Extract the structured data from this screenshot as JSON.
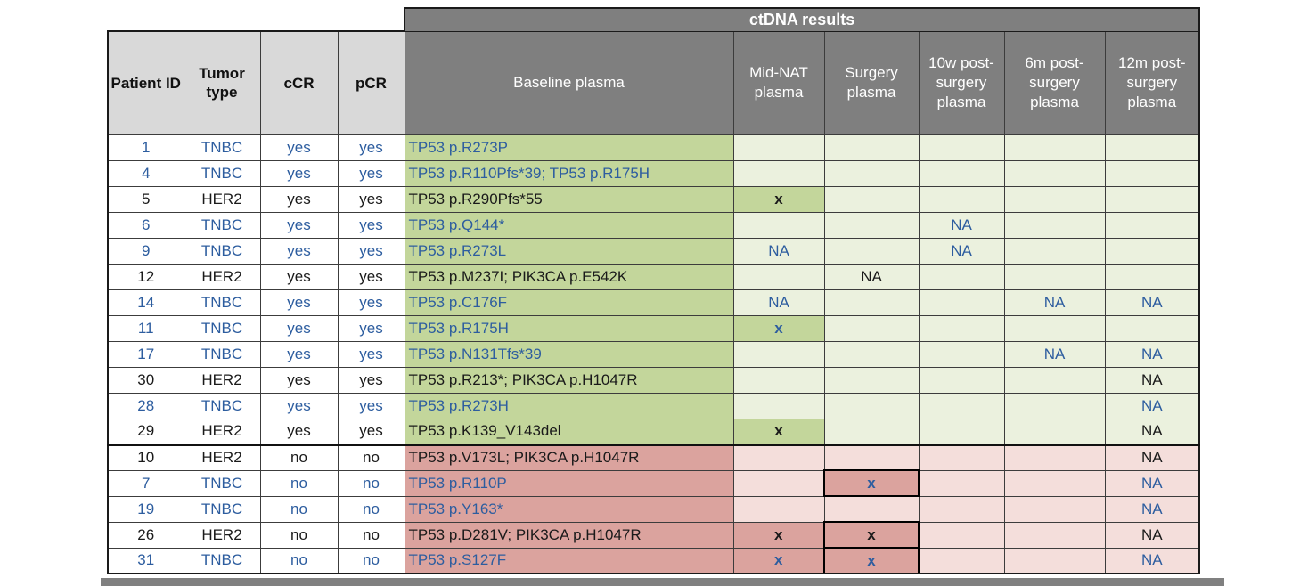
{
  "chart_data": {
    "type": "table",
    "title": "ctDNA results",
    "group_header": {
      "label": "ctDNA results",
      "span_columns": 6
    },
    "columns": [
      "Patient ID",
      "Tumor type",
      "cCR",
      "pCR",
      "Baseline plasma",
      "Mid-NAT plasma",
      "Surgery plasma",
      "10w post-surgery plasma",
      "6m post-surgery plasma",
      "12m post-surgery plasma"
    ],
    "rows": [
      {
        "id": "1",
        "tumor": "TNBC",
        "ccr": "yes",
        "pcr": "yes",
        "baseline": "TP53 p.R273P",
        "mid": "",
        "surg": "",
        "w10": "",
        "m6": "",
        "m12": "",
        "highlight": [],
        "boxed": []
      },
      {
        "id": "4",
        "tumor": "TNBC",
        "ccr": "yes",
        "pcr": "yes",
        "baseline": "TP53 p.R110Pfs*39; TP53 p.R175H",
        "mid": "",
        "surg": "",
        "w10": "",
        "m6": "",
        "m12": "",
        "highlight": [],
        "boxed": []
      },
      {
        "id": "5",
        "tumor": "HER2",
        "ccr": "yes",
        "pcr": "yes",
        "baseline": "TP53 p.R290Pfs*55",
        "mid": "x",
        "surg": "",
        "w10": "",
        "m6": "",
        "m12": "",
        "highlight": [
          "mid"
        ],
        "boxed": []
      },
      {
        "id": "6",
        "tumor": "TNBC",
        "ccr": "yes",
        "pcr": "yes",
        "baseline": "TP53 p.Q144*",
        "mid": "",
        "surg": "",
        "w10": "NA",
        "m6": "",
        "m12": "",
        "highlight": [],
        "boxed": []
      },
      {
        "id": "9",
        "tumor": "TNBC",
        "ccr": "yes",
        "pcr": "yes",
        "baseline": "TP53 p.R273L",
        "mid": "NA",
        "surg": "",
        "w10": "NA",
        "m6": "",
        "m12": "",
        "highlight": [],
        "boxed": []
      },
      {
        "id": "12",
        "tumor": "HER2",
        "ccr": "yes",
        "pcr": "yes",
        "baseline": "TP53 p.M237I; PIK3CA p.E542K",
        "mid": "",
        "surg": "NA",
        "w10": "",
        "m6": "",
        "m12": "",
        "highlight": [],
        "boxed": []
      },
      {
        "id": "14",
        "tumor": "TNBC",
        "ccr": "yes",
        "pcr": "yes",
        "baseline": "TP53 p.C176F",
        "mid": "NA",
        "surg": "",
        "w10": "",
        "m6": "NA",
        "m12": "NA",
        "highlight": [],
        "boxed": []
      },
      {
        "id": "11",
        "tumor": "TNBC",
        "ccr": "yes",
        "pcr": "yes",
        "baseline": "TP53 p.R175H",
        "mid": "x",
        "surg": "",
        "w10": "",
        "m6": "",
        "m12": "",
        "highlight": [
          "mid"
        ],
        "boxed": []
      },
      {
        "id": "17",
        "tumor": "TNBC",
        "ccr": "yes",
        "pcr": "yes",
        "baseline": "TP53 p.N131Tfs*39",
        "mid": "",
        "surg": "",
        "w10": "",
        "m6": "NA",
        "m12": "NA",
        "highlight": [],
        "boxed": []
      },
      {
        "id": "30",
        "tumor": "HER2",
        "ccr": "yes",
        "pcr": "yes",
        "baseline": "TP53 p.R213*; PIK3CA p.H1047R",
        "mid": "",
        "surg": "",
        "w10": "",
        "m6": "",
        "m12": "NA",
        "highlight": [],
        "boxed": []
      },
      {
        "id": "28",
        "tumor": "TNBC",
        "ccr": "yes",
        "pcr": "yes",
        "baseline": "TP53 p.R273H",
        "mid": "",
        "surg": "",
        "w10": "",
        "m6": "",
        "m12": "NA",
        "highlight": [],
        "boxed": []
      },
      {
        "id": "29",
        "tumor": "HER2",
        "ccr": "yes",
        "pcr": "yes",
        "baseline": "TP53 p.K139_V143del",
        "mid": "x",
        "surg": "",
        "w10": "",
        "m6": "",
        "m12": "NA",
        "highlight": [
          "mid"
        ],
        "boxed": []
      },
      {
        "id": "10",
        "tumor": "HER2",
        "ccr": "no",
        "pcr": "no",
        "baseline": "TP53 p.V173L; PIK3CA p.H1047R",
        "mid": "",
        "surg": "",
        "w10": "",
        "m6": "",
        "m12": "NA",
        "highlight": [],
        "boxed": []
      },
      {
        "id": "7",
        "tumor": "TNBC",
        "ccr": "no",
        "pcr": "no",
        "baseline": "TP53 p.R110P",
        "mid": "",
        "surg": "x",
        "w10": "",
        "m6": "",
        "m12": "NA",
        "highlight": [
          "surg"
        ],
        "boxed": [
          "surg"
        ]
      },
      {
        "id": "19",
        "tumor": "TNBC",
        "ccr": "no",
        "pcr": "no",
        "baseline": "TP53 p.Y163*",
        "mid": "",
        "surg": "",
        "w10": "",
        "m6": "",
        "m12": "NA",
        "highlight": [],
        "boxed": []
      },
      {
        "id": "26",
        "tumor": "HER2",
        "ccr": "no",
        "pcr": "no",
        "baseline": "TP53 p.D281V; PIK3CA p.H1047R",
        "mid": "x",
        "surg": "x",
        "w10": "",
        "m6": "",
        "m12": "NA",
        "highlight": [
          "mid",
          "surg"
        ],
        "boxed": [
          "surg"
        ]
      },
      {
        "id": "31",
        "tumor": "TNBC",
        "ccr": "no",
        "pcr": "no",
        "baseline": "TP53 p.S127F",
        "mid": "x",
        "surg": "x",
        "w10": "",
        "m6": "",
        "m12": "NA",
        "highlight": [
          "mid",
          "surg"
        ],
        "boxed": [
          "surg"
        ]
      }
    ]
  },
  "colors": {
    "header_dark_gray": "#7f7f7f",
    "header_light_gray": "#d9d9d9",
    "responder_green": "#c3d69b",
    "responder_green_light": "#ebf1de",
    "non_responder_red": "#dba39e",
    "non_responder_red_light": "#f4dedb",
    "tnbc_text_blue": "#2d5d9f",
    "her2_text_black": "#1a1a1a"
  }
}
